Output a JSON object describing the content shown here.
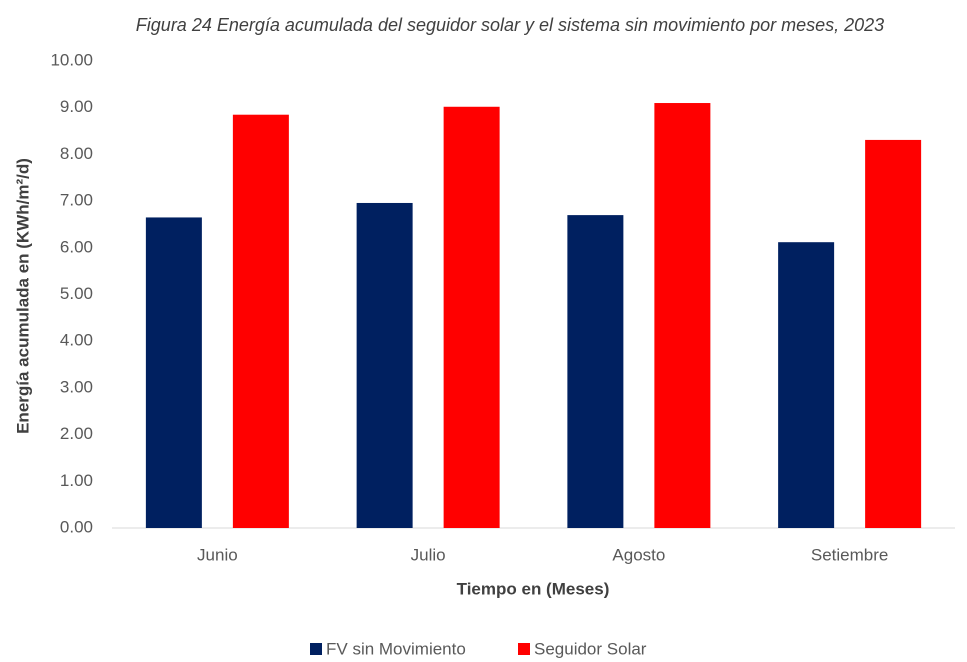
{
  "chart_data": {
    "type": "bar",
    "title": "Figura 24 Energía acumulada del seguidor solar y el sistema sin movimiento por meses, 2023",
    "x_label": "Tiempo en (Meses)",
    "y_label": "Energía acumulada en (KWh/m²/d)",
    "categories": [
      "Junio",
      "Julio",
      "Agosto",
      "Setiembre"
    ],
    "series": [
      {
        "name": "FV sin Movimiento",
        "color": "#002060",
        "values": [
          6.65,
          6.96,
          6.7,
          6.12
        ]
      },
      {
        "name": "Seguidor Solar",
        "color": "#ff0000",
        "values": [
          8.85,
          9.02,
          9.1,
          8.31
        ]
      }
    ],
    "ylim": [
      0,
      10
    ],
    "yticks": [
      {
        "value": 0,
        "label": "0.00"
      },
      {
        "value": 1,
        "label": "1.00"
      },
      {
        "value": 2,
        "label": "2.00"
      },
      {
        "value": 3,
        "label": "3.00"
      },
      {
        "value": 4,
        "label": "4.00"
      },
      {
        "value": 5,
        "label": "5.00"
      },
      {
        "value": 6,
        "label": "6.00"
      },
      {
        "value": 7,
        "label": "7.00"
      },
      {
        "value": 8,
        "label": "8.00"
      },
      {
        "value": 9,
        "label": "9.00"
      },
      {
        "value": 10,
        "label": "10.00"
      }
    ],
    "grid": false,
    "legend": "bottom"
  }
}
